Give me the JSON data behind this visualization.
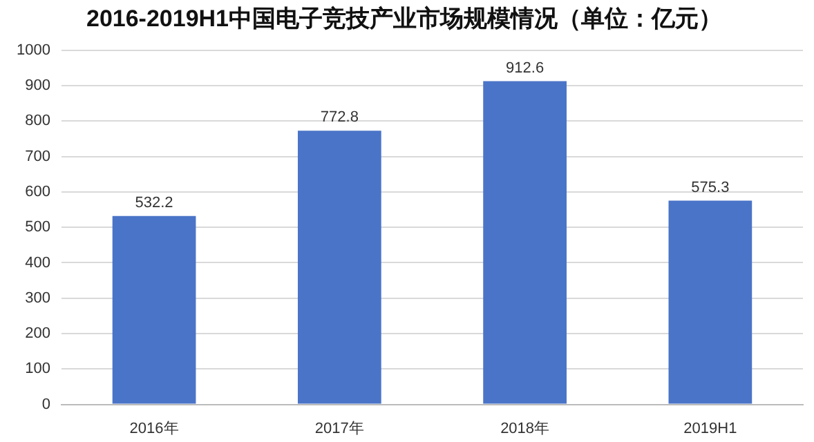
{
  "chart_data": {
    "type": "bar",
    "title": "2016-2019H1中国电子竞技产业市场规模情况（单位：亿元）",
    "categories": [
      "2016年",
      "2017年",
      "2018年",
      "2019H1"
    ],
    "values": [
      532.2,
      772.8,
      912.6,
      575.3
    ],
    "color": "#4a74c8",
    "ylim": [
      0,
      1000
    ],
    "yticks": [
      0,
      100,
      200,
      300,
      400,
      500,
      600,
      700,
      800,
      900,
      1000
    ],
    "grid": "y",
    "data_labels": true,
    "legend": false
  }
}
